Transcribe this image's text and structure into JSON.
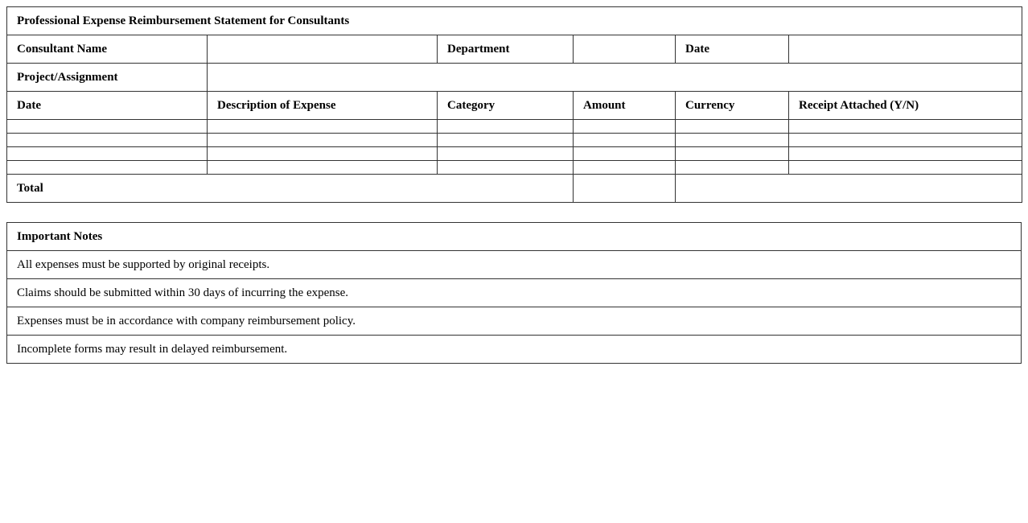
{
  "form": {
    "title": "Professional Expense Reimbursement Statement for Consultants",
    "consultant_name_label": "Consultant Name",
    "consultant_name_value": "",
    "department_label": "Department",
    "department_value": "",
    "date_label": "Date",
    "date_value": "",
    "project_label": "Project/Assignment",
    "project_value": "",
    "columns": [
      "Date",
      "Description of Expense",
      "Category",
      "Amount",
      "Currency",
      "Receipt Attached (Y/N)"
    ],
    "rows": [
      [
        "",
        "",
        "",
        "",
        "",
        ""
      ],
      [
        "",
        "",
        "",
        "",
        "",
        ""
      ],
      [
        "",
        "",
        "",
        "",
        "",
        ""
      ],
      [
        "",
        "",
        "",
        "",
        "",
        ""
      ]
    ],
    "total_label": "Total",
    "total_amount": "",
    "total_extra": ""
  },
  "notes": {
    "title": "Important Notes",
    "items": [
      "All expenses must be supported by original receipts.",
      "Claims should be submitted within 30 days of incurring the expense.",
      "Expenses must be in accordance with company reimbursement policy.",
      "Incomplete forms may result in delayed reimbursement."
    ]
  }
}
